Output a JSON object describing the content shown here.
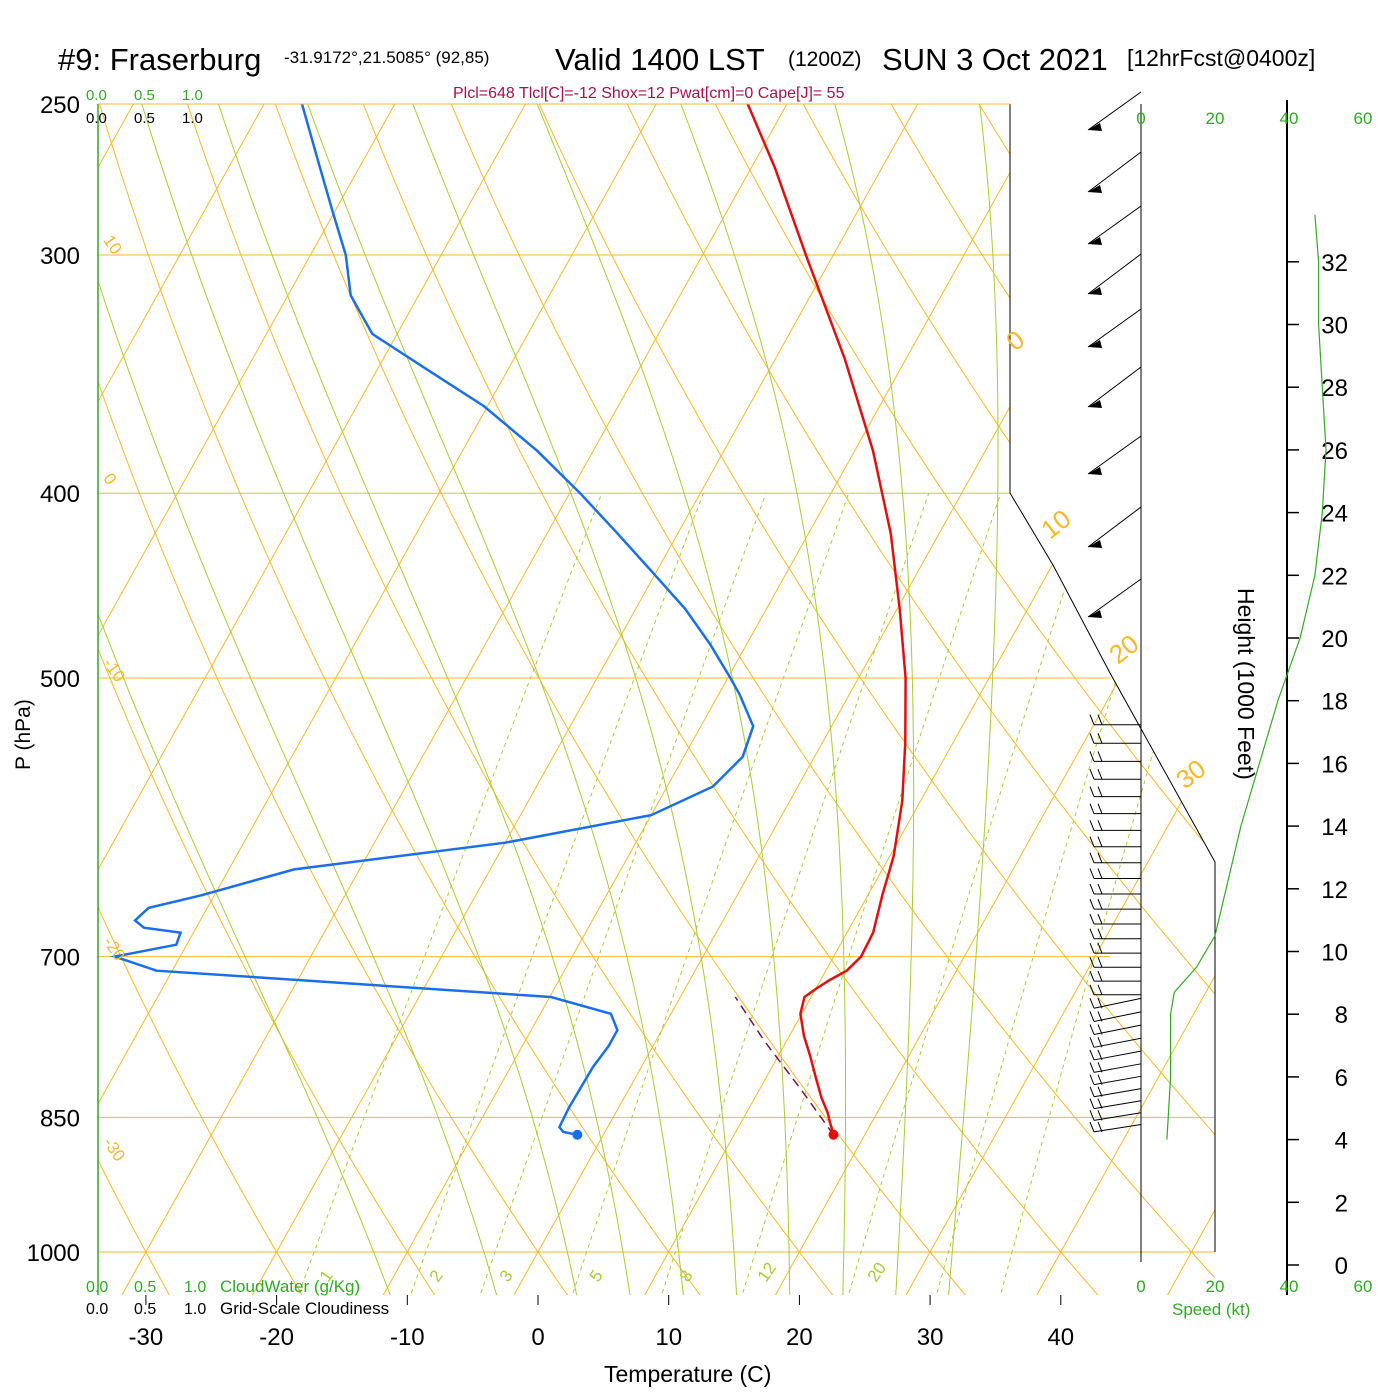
{
  "header": {
    "station": "#9: Fraserburg",
    "coords": "-31.9172°,21.5085° (92,85)",
    "valid": "Valid 1400 LST",
    "zulu": "(1200Z)",
    "date": "SUN 3 Oct 2021",
    "forecast": "[12hrFcst@0400z]",
    "indices": "Plcl=648 Tlcl[C]=-12 Shox=12 Pwat[cm]=0 Cape[J]= 55"
  },
  "labels": {
    "ylabel": "P (hPa)",
    "xlabel": "Temperature (C)",
    "height_axis": "Height (1000 Feet)",
    "speed_axis": "Speed (kt)",
    "cloudwater": "CloudWater (g/Kg)",
    "cloudiness": "Grid-Scale Cloudiness"
  },
  "colors": {
    "isobar": "#f5b82a",
    "isotherm": "#f5b82a",
    "dry_adiabat": "#f5b82a",
    "moist_adiabat": "#a6cc33",
    "mixing_ratio": "#a6cc33",
    "temperature": "#e01010",
    "dewpoint": "#1a6fe8",
    "parcel": "#7a1050",
    "speed_profile": "#33aa22",
    "green_text": "#2eaa22",
    "title_magenta": "#a3124e"
  },
  "chart_data": {
    "type": "skew-t",
    "pressure_ticks": [
      250,
      300,
      400,
      500,
      700,
      850,
      1000
    ],
    "temperature_ticks": [
      -30,
      -20,
      -10,
      0,
      10,
      20,
      30,
      40
    ],
    "top_scale_labels": [
      "0.0",
      "0.5",
      "1.0"
    ],
    "bottom_scale_labels": [
      "0.0",
      "0.5",
      "1.0"
    ],
    "dry_adiabat_labels": [
      "10",
      "0",
      "-10",
      "-20",
      "-30"
    ],
    "isotherm_labels": [
      "0",
      "10",
      "20",
      "30"
    ],
    "mixing_ratio_labels": [
      "1",
      "2",
      "3",
      "5",
      "8",
      "12",
      "20"
    ],
    "height_ticks": [
      "0",
      "2",
      "4",
      "6",
      "8",
      "10",
      "12",
      "14",
      "16",
      "18",
      "20",
      "22",
      "24",
      "26",
      "28",
      "30",
      "32"
    ],
    "speed_ticks": [
      "0",
      "20",
      "40",
      "60"
    ],
    "temperature_profile": {
      "pressure": [
        868,
        855,
        845,
        830,
        810,
        790,
        770,
        750,
        735,
        728,
        720,
        712,
        700,
        680,
        650,
        620,
        580,
        540,
        500,
        460,
        420,
        380,
        340,
        300,
        270,
        250
      ],
      "temp": [
        17.6,
        16.8,
        16.2,
        15.1,
        13.8,
        12.5,
        11.1,
        9.9,
        9.5,
        10.0,
        10.7,
        11.6,
        12.1,
        12.0,
        11.1,
        10.3,
        8.6,
        6.3,
        3.6,
        0.2,
        -3.7,
        -8.6,
        -14.7,
        -22.1,
        -28.2,
        -33.0
      ]
    },
    "dewpoint_profile": {
      "pressure": [
        868,
        865,
        860,
        840,
        800,
        780,
        765,
        750,
        735,
        720,
        712,
        700,
        690,
        680,
        676,
        670,
        660,
        650,
        630,
        610,
        590,
        570,
        550,
        530,
        510,
        500,
        480,
        460,
        440,
        420,
        400,
        380,
        360,
        345,
        330,
        315,
        300,
        285,
        270,
        250
      ],
      "temp": [
        -2.0,
        -3.2,
        -3.7,
        -3.8,
        -3.7,
        -3.4,
        -3.4,
        -4.6,
        -9.9,
        -30.0,
        -41.2,
        -45.0,
        -40.8,
        -41.0,
        -44.0,
        -45.0,
        -44.5,
        -41.0,
        -35.0,
        -20.0,
        -10.0,
        -6.5,
        -5.5,
        -6.0,
        -8.4,
        -9.8,
        -12.8,
        -16.2,
        -20.3,
        -24.6,
        -29.2,
        -34.3,
        -40.3,
        -46.0,
        -51.9,
        -55.2,
        -57.3,
        -60.1,
        -63.0,
        -67.1
      ]
    },
    "parcel_profile": {
      "pressure": [
        868,
        820,
        775,
        735
      ],
      "temp": [
        17.6,
        13.0,
        8.3,
        4.2
      ]
    },
    "surface": {
      "pressure": 868,
      "temp": 17.6,
      "dewpoint": -2.0
    },
    "speed_profile": {
      "height_kft": [
        4,
        6,
        8,
        8.7,
        9.5,
        10.5,
        12,
        14,
        16,
        18,
        20,
        22,
        24,
        26,
        28,
        30,
        32,
        33.5
      ],
      "speed_kt": [
        7,
        8,
        8,
        9,
        15,
        20,
        23,
        27,
        32,
        37,
        43,
        47,
        49,
        50,
        49,
        48,
        48,
        47
      ]
    },
    "boundary_layer_curve": {
      "height_kft": [
        4,
        8.5,
        12.7,
        17,
        19.7,
        22,
        25.3,
        31.5
      ],
      "speed_kt": [
        0,
        0,
        20,
        10,
        -10,
        -25,
        -40,
        -40
      ]
    }
  }
}
